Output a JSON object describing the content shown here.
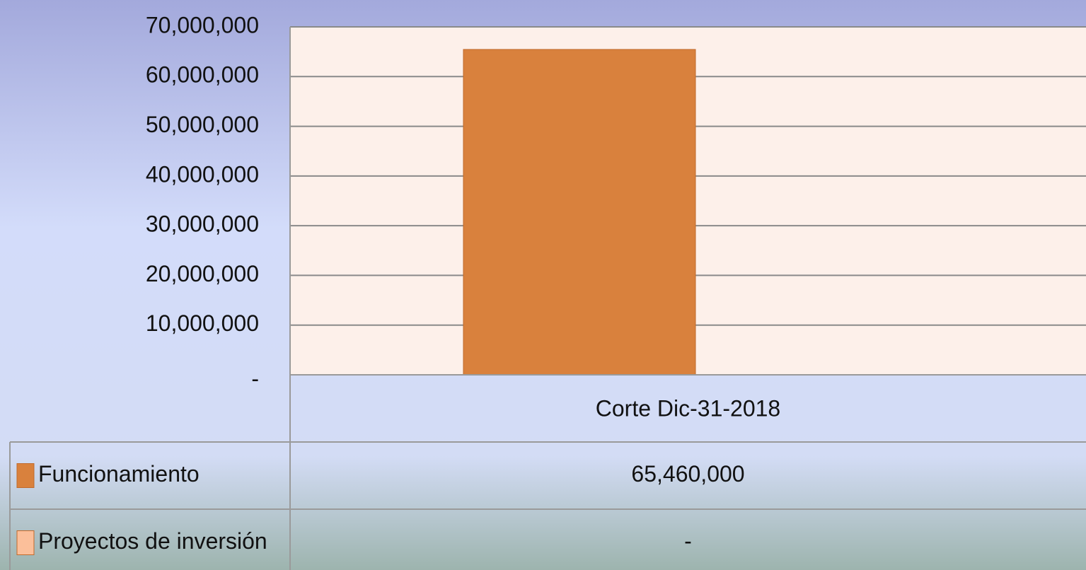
{
  "chart_data": {
    "type": "bar",
    "categories": [
      "Corte Dic-31-2018"
    ],
    "series": [
      {
        "name": "Funcionamiento",
        "color": "#d9813d",
        "values": [
          65460000
        ],
        "value_labels": [
          "65,460,000"
        ]
      },
      {
        "name": "Proyectos de inversión",
        "color": "#fbbf9a",
        "values": [
          0
        ],
        "value_labels": [
          "-"
        ]
      }
    ],
    "ylim": [
      0,
      70000000
    ],
    "yticks": [
      {
        "value": 0,
        "label": "-"
      },
      {
        "value": 10000000,
        "label": "10,000,000"
      },
      {
        "value": 20000000,
        "label": "20,000,000"
      },
      {
        "value": 30000000,
        "label": "30,000,000"
      },
      {
        "value": 40000000,
        "label": "40,000,000"
      },
      {
        "value": 50000000,
        "label": "50,000,000"
      },
      {
        "value": 60000000,
        "label": "60,000,000"
      },
      {
        "value": 70000000,
        "label": "70,000,000"
      }
    ],
    "grid": true
  }
}
